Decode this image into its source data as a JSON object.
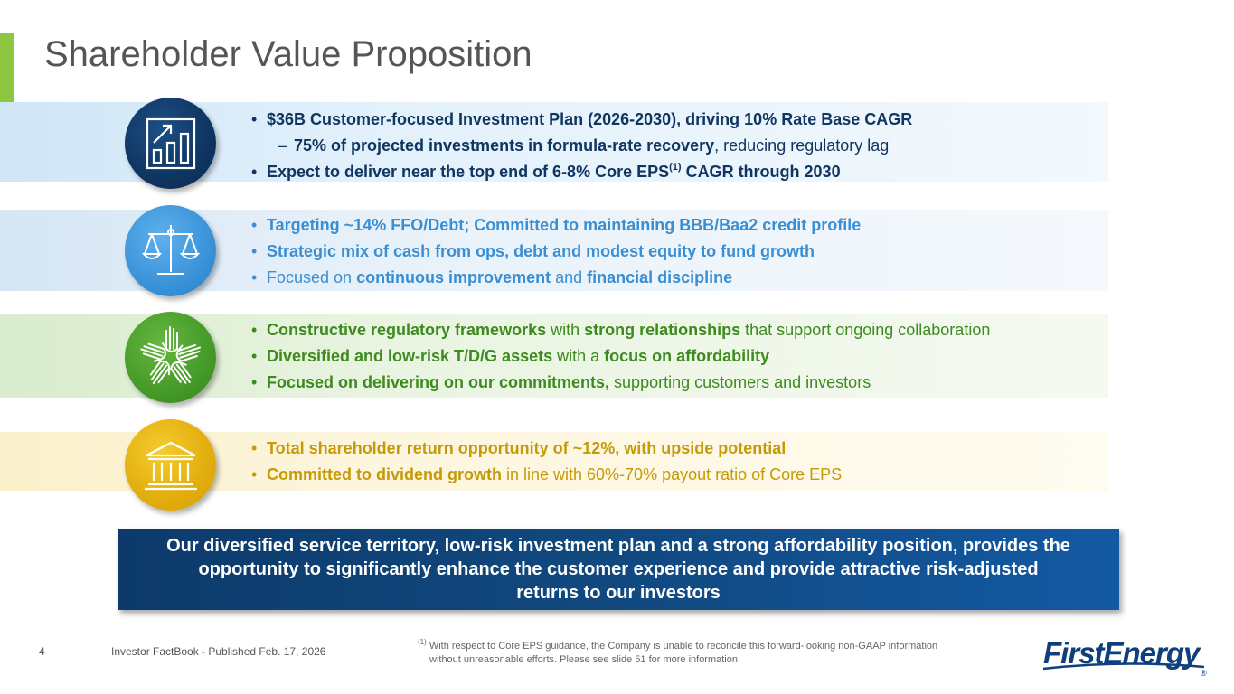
{
  "title": "Shareholder Value Proposition",
  "sections": [
    {
      "icon": "bar-chart-growth-icon",
      "bullets": [
        {
          "parts": [
            {
              "t": "$36B Customer-focused Investment Plan (2026-2030), driving 10% Rate Base CAGR",
              "b": true
            }
          ]
        },
        {
          "sub": true,
          "parts": [
            {
              "t": "75% of projected investments in formula-rate recovery",
              "b": true
            },
            {
              "t": ", reducing regulatory lag",
              "b": false
            }
          ]
        },
        {
          "parts": [
            {
              "t": "Expect to deliver near the top end of 6-8% Core EPS",
              "b": true
            },
            {
              "t": "(1)",
              "b": true,
              "sup": true
            },
            {
              "t": " CAGR through 2030",
              "b": true
            }
          ]
        }
      ]
    },
    {
      "icon": "balance-scale-icon",
      "bullets": [
        {
          "parts": [
            {
              "t": "Targeting ~14% FFO/Debt; Committed to maintaining BBB/Baa2 credit profile",
              "b": true
            }
          ]
        },
        {
          "parts": [
            {
              "t": "Strategic mix of cash from ops, debt and modest equity to fund growth",
              "b": true
            }
          ]
        },
        {
          "parts": [
            {
              "t": "Focused on ",
              "b": false
            },
            {
              "t": "continuous improvement",
              "b": true
            },
            {
              "t": " and ",
              "b": false
            },
            {
              "t": "financial discipline",
              "b": true
            }
          ]
        }
      ]
    },
    {
      "icon": "joined-hands-icon",
      "bullets": [
        {
          "parts": [
            {
              "t": "Constructive regulatory frameworks",
              "b": true
            },
            {
              "t": " with ",
              "b": false
            },
            {
              "t": "strong relationships",
              "b": true
            },
            {
              "t": " that support ongoing collaboration",
              "b": false
            }
          ]
        },
        {
          "parts": [
            {
              "t": "Diversified and low-risk T/D/G assets",
              "b": true
            },
            {
              "t": " with a ",
              "b": false
            },
            {
              "t": "focus on affordability",
              "b": true
            }
          ]
        },
        {
          "parts": [
            {
              "t": "Focused on delivering on our commitments,",
              "b": true
            },
            {
              "t": " supporting customers and investors",
              "b": false
            }
          ]
        }
      ]
    },
    {
      "icon": "bank-building-icon",
      "bullets": [
        {
          "parts": [
            {
              "t": "Total shareholder return opportunity of ~12%, with upside potential",
              "b": true
            }
          ]
        },
        {
          "parts": [
            {
              "t": "Committed to dividend growth",
              "b": true
            },
            {
              "t": " in line with 60%-70% payout ratio of Core EPS",
              "b": false
            }
          ]
        }
      ]
    }
  ],
  "callout": "Our diversified service territory, low-risk investment plan and a strong affordability position, provides the opportunity to significantly enhance the customer experience and provide attractive risk-adjusted returns to our investors",
  "footer": {
    "page_number": "4",
    "source": "Investor FactBook - Published Feb. 17, 2026",
    "footnote_marker": "(1)",
    "footnote_line1": " With respect to Core EPS guidance, the Company is unable to reconcile this forward-looking non-GAAP information",
    "footnote_line2": "without unreasonable efforts. Please see slide 51 for more information."
  },
  "logo": {
    "text": "FirstEnergy",
    "mark": "®",
    "color": "#0f3f7d"
  }
}
